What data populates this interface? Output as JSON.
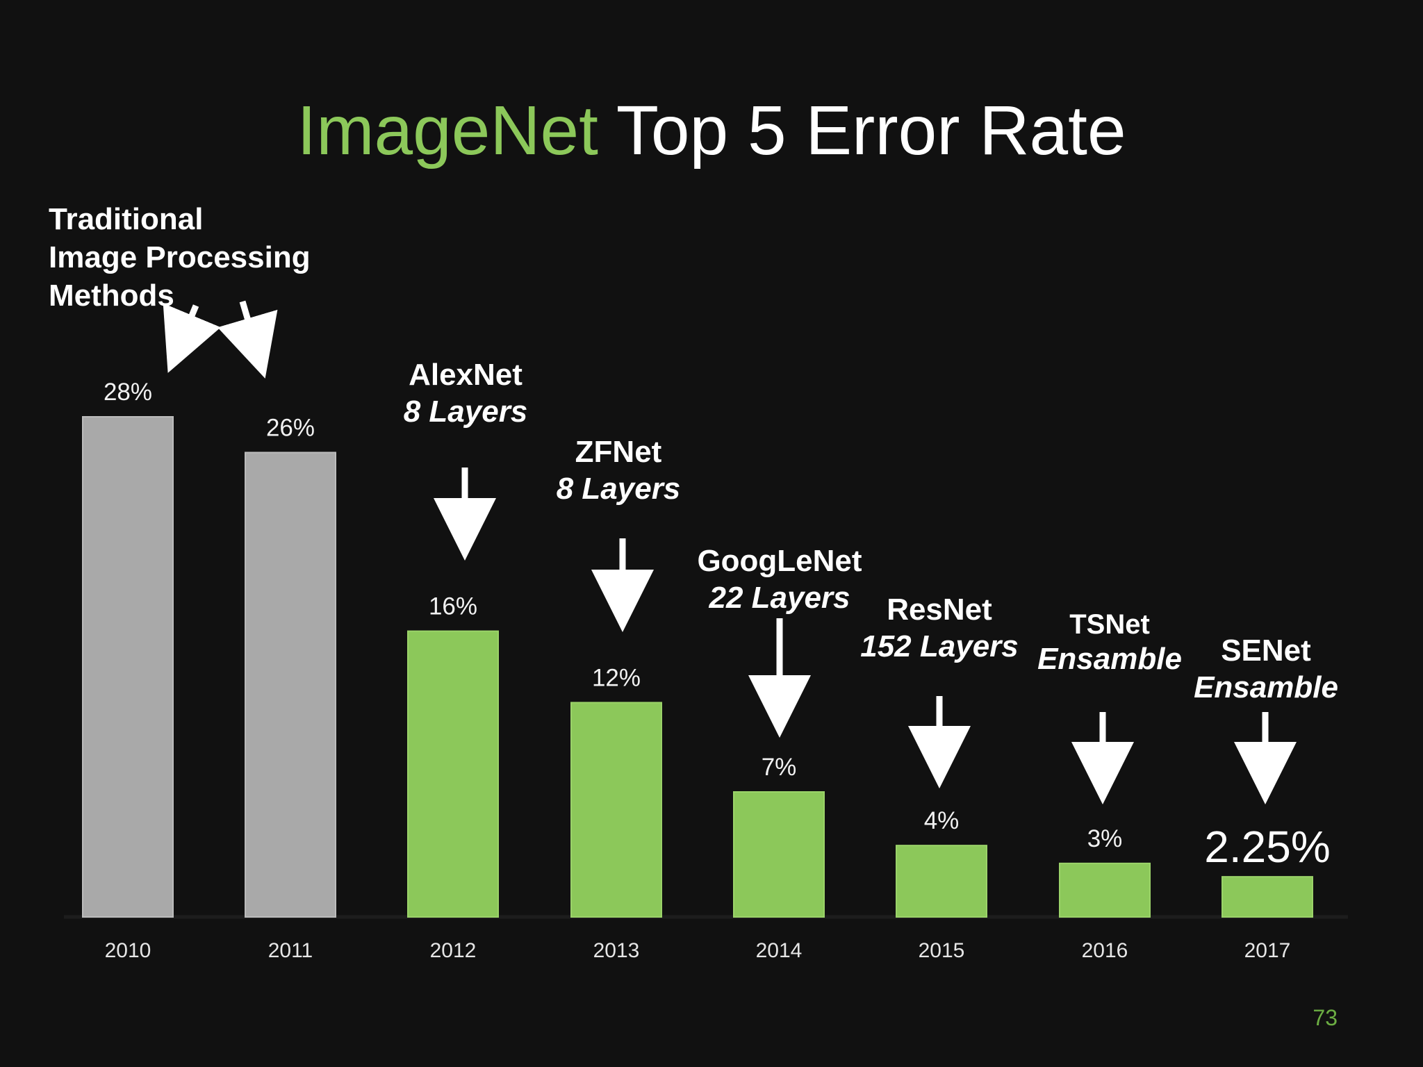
{
  "slide": {
    "title_accent": "ImageNet",
    "title_rest": " Top 5 Error Rate",
    "page_number": "73"
  },
  "annotations": {
    "traditional": [
      "Traditional",
      "Image Processing",
      "Methods"
    ],
    "alexnet": {
      "name": "AlexNet",
      "detail": "8 Layers"
    },
    "zfnet": {
      "name": "ZFNet",
      "detail": "8 Layers"
    },
    "googlenet": {
      "name": "GoogLeNet",
      "detail": "22 Layers"
    },
    "resnet": {
      "name": "ResNet",
      "detail": "152 Layers"
    },
    "tsnet": {
      "name": "TSNet",
      "detail": "Ensamble"
    },
    "senet": {
      "name": "SENet",
      "detail": "Ensamble"
    }
  },
  "colors": {
    "background": "#111111",
    "traditional_bar": "#a9a9a9",
    "deep_bar": "#8cc85a",
    "title_accent": "#8cc85a",
    "text": "#ffffff",
    "axis_label": "#e6e6e6",
    "page_number": "#6cae43"
  },
  "chart_data": {
    "type": "bar",
    "title": "ImageNet Top 5 Error Rate",
    "xlabel": "",
    "ylabel": "",
    "ylim": [
      0,
      28
    ],
    "grid": false,
    "legend": "none",
    "categories": [
      "2010",
      "2011",
      "2012",
      "2013",
      "2014",
      "2015",
      "2016",
      "2017"
    ],
    "values": [
      28,
      26,
      16,
      12,
      7,
      4,
      3,
      2.25
    ],
    "value_labels": [
      "28%",
      "26%",
      "16%",
      "12%",
      "7%",
      "4%",
      "3%",
      "2.25%"
    ],
    "bar_groups": [
      "traditional",
      "traditional",
      "deep",
      "deep",
      "deep",
      "deep",
      "deep",
      "deep"
    ]
  }
}
